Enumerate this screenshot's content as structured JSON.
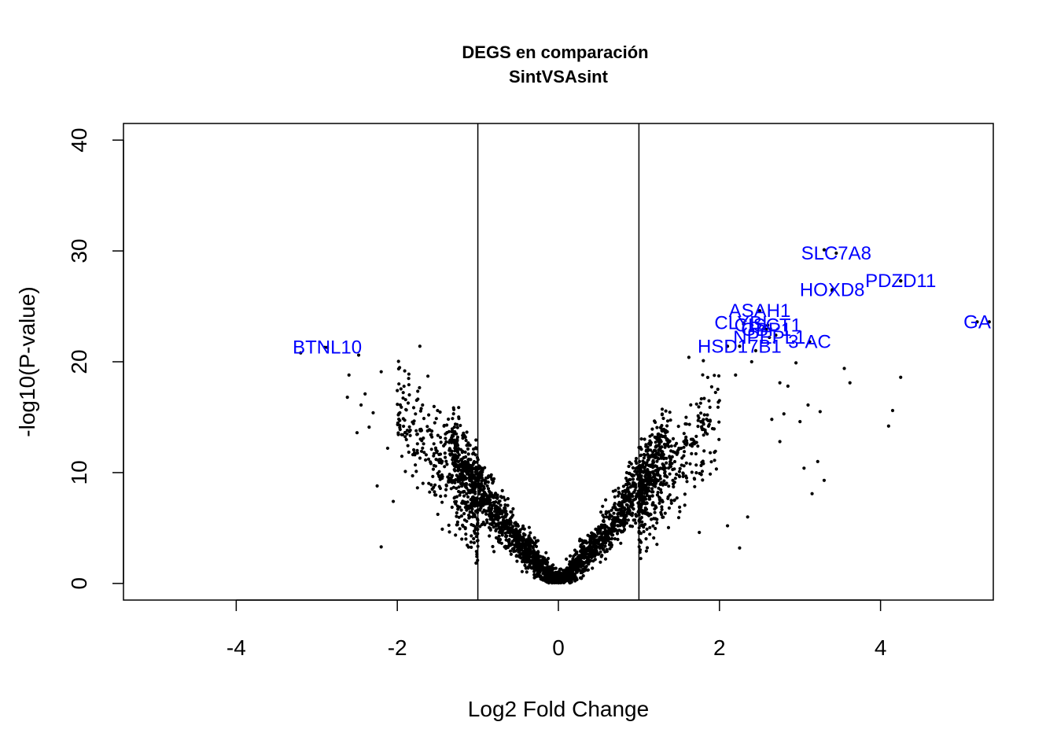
{
  "chart_data": {
    "type": "scatter",
    "title": "DEGS en comparación",
    "subtitle": "SintVSAsint",
    "xlabel": "Log2 Fold Change",
    "ylabel": "-log10(P-value)",
    "xlim": [
      -5.4,
      5.4
    ],
    "ylim": [
      -1.5,
      41.5
    ],
    "x_ticks": [
      -4,
      -2,
      0,
      2,
      4
    ],
    "y_ticks": [
      0,
      10,
      20,
      30,
      40
    ],
    "x_tick_labels": [
      "-4",
      "-2",
      "0",
      "2",
      "4"
    ],
    "y_tick_labels": [
      "0",
      "10",
      "20",
      "30",
      "40"
    ],
    "threshold_lines_x": [
      -1,
      1
    ],
    "grid": false,
    "legend": "none",
    "point_color": "#000000",
    "label_color": "#0000ff",
    "background_points_note": "approx. 6000 genes forming a V-shaped cloud",
    "points": [
      [
        -3.2,
        20.8
      ],
      [
        -2.9,
        21.3
      ],
      [
        -2.48,
        20.6
      ],
      [
        -2.6,
        18.8
      ],
      [
        -2.2,
        19.1
      ],
      [
        -1.72,
        21.4
      ],
      [
        -2.4,
        17.1
      ],
      [
        -2.45,
        16.1
      ],
      [
        -2.3,
        15.4
      ],
      [
        -2.0,
        17.4
      ],
      [
        -1.62,
        18.7
      ],
      [
        -2.62,
        16.8
      ],
      [
        -2.2,
        3.3
      ],
      [
        -2.5,
        13.6
      ],
      [
        -2.05,
        7.4
      ],
      [
        -1.95,
        15.9
      ],
      [
        -2.12,
        12.2
      ],
      [
        -1.85,
        13.7
      ],
      [
        -1.5,
        15.6
      ],
      [
        -1.75,
        12.6
      ],
      [
        -1.9,
        10.1
      ],
      [
        -2.25,
        8.8
      ],
      [
        -1.42,
        14.2
      ],
      [
        -2.35,
        14.1
      ],
      [
        3.3,
        30.1
      ],
      [
        4.25,
        27.3
      ],
      [
        3.4,
        26.4
      ],
      [
        5.35,
        23.6
      ],
      [
        2.5,
        24.6
      ],
      [
        2.3,
        23.4
      ],
      [
        2.55,
        23.0
      ],
      [
        2.7,
        22.4
      ],
      [
        2.1,
        21.4
      ],
      [
        2.95,
        19.9
      ],
      [
        3.55,
        19.4
      ],
      [
        3.62,
        18.1
      ],
      [
        4.25,
        18.6
      ],
      [
        4.15,
        15.6
      ],
      [
        4.1,
        14.2
      ],
      [
        3.1,
        16.1
      ],
      [
        3.25,
        15.5
      ],
      [
        2.4,
        20.0
      ],
      [
        2.2,
        18.8
      ],
      [
        2.75,
        18.1
      ],
      [
        2.85,
        17.8
      ],
      [
        3.0,
        14.6
      ],
      [
        2.8,
        15.3
      ],
      [
        2.65,
        14.8
      ],
      [
        3.3,
        9.3
      ],
      [
        3.22,
        11.0
      ],
      [
        3.05,
        10.4
      ],
      [
        3.15,
        8.1
      ],
      [
        2.75,
        12.8
      ],
      [
        2.25,
        3.2
      ],
      [
        2.35,
        6.0
      ],
      [
        2.1,
        5.2
      ],
      [
        1.75,
        4.6
      ],
      [
        1.62,
        20.4
      ],
      [
        1.8,
        20.1
      ],
      [
        2.45,
        21.0
      ],
      [
        1.85,
        15.2
      ],
      [
        2.0,
        16.5
      ],
      [
        1.65,
        13.0
      ]
    ],
    "labeled_genes": [
      {
        "name": "BTNL10",
        "x": -2.87,
        "y": 21.3
      },
      {
        "name": "SLC7A8",
        "x": 3.45,
        "y": 29.8
      },
      {
        "name": "HOXD8",
        "x": 3.4,
        "y": 26.5
      },
      {
        "name": "PDZD11",
        "x": 4.25,
        "y": 27.3
      },
      {
        "name": "GA",
        "x": 5.2,
        "y": 23.6
      },
      {
        "name": "ASAH1",
        "x": 2.5,
        "y": 24.6
      },
      {
        "name": "CLYBL",
        "x": 2.3,
        "y": 23.5
      },
      {
        "name": "GBP1",
        "x": 2.58,
        "y": 22.9
      },
      {
        "name": "CISCT1",
        "x": 2.6,
        "y": 23.3
      },
      {
        "name": "NPEPL1",
        "x": 2.62,
        "y": 22.2
      },
      {
        "name": "HSD17B1",
        "x": 2.25,
        "y": 21.4
      },
      {
        "name": "3-AC",
        "x": 3.12,
        "y": 21.8
      }
    ]
  }
}
